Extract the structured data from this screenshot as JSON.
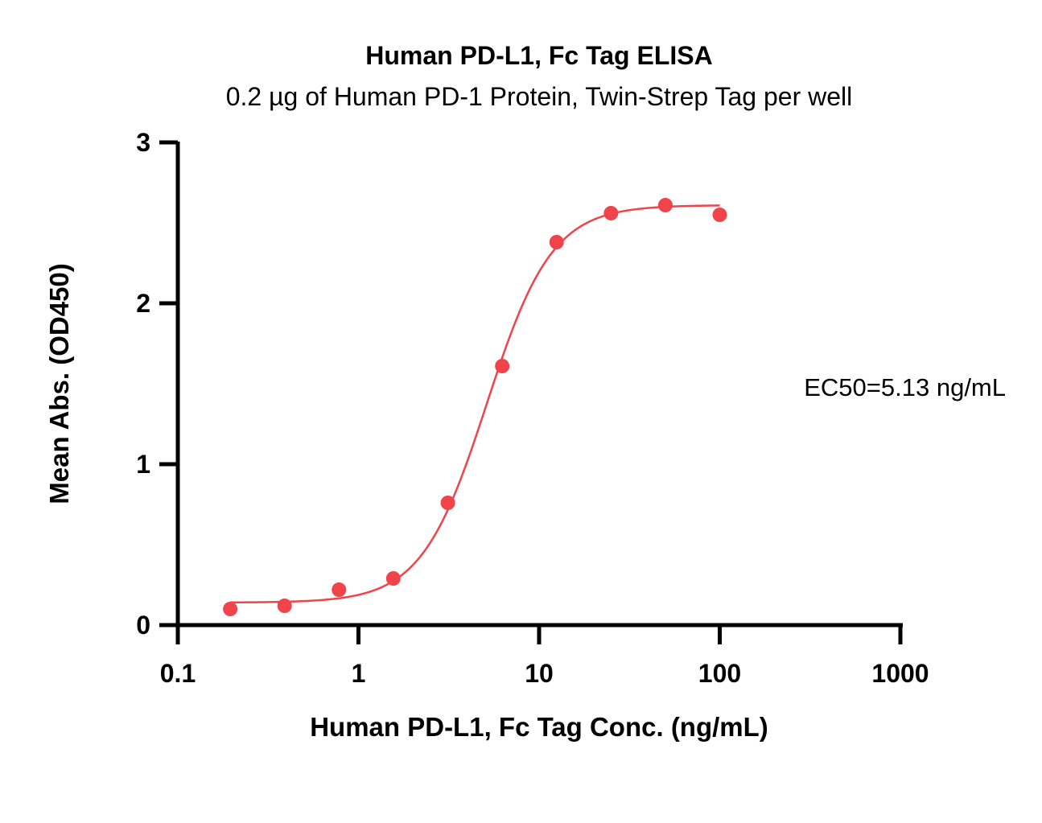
{
  "chart_data": {
    "type": "scatter",
    "title": "Human PD-L1, Fc Tag ELISA",
    "subtitle": "0.2 µg of Human PD-1 Protein, Twin-Strep Tag per well",
    "xlabel": "Human PD-L1, Fc Tag Conc. (ng/mL)",
    "ylabel": "Mean Abs. (OD450)",
    "x_scale": "log",
    "xlim": [
      0.1,
      1000
    ],
    "ylim": [
      0,
      3
    ],
    "x_ticks": [
      0.1,
      1,
      10,
      100,
      1000
    ],
    "x_tick_labels": [
      "0.1",
      "1",
      "10",
      "100",
      "1000"
    ],
    "y_ticks": [
      0,
      1,
      2,
      3
    ],
    "y_tick_labels": [
      "0",
      "1",
      "2",
      "3"
    ],
    "grid": false,
    "series": [
      {
        "points": [
          {
            "x": 0.195,
            "y": 0.1
          },
          {
            "x": 0.39,
            "y": 0.12
          },
          {
            "x": 0.78,
            "y": 0.22
          },
          {
            "x": 1.56,
            "y": 0.29
          },
          {
            "x": 3.125,
            "y": 0.76
          },
          {
            "x": 6.25,
            "y": 1.61
          },
          {
            "x": 12.5,
            "y": 2.38
          },
          {
            "x": 25,
            "y": 2.56
          },
          {
            "x": 50,
            "y": 2.61
          },
          {
            "x": 100,
            "y": 2.55
          }
        ],
        "fit": {
          "model": "4PL",
          "bottom": 0.14,
          "top": 2.61,
          "ec50": 5.13,
          "hill": 2.4,
          "x_range": [
            0.195,
            100
          ]
        },
        "color": "#f0444a"
      }
    ],
    "annotation": "EC50=5.13 ng/mL"
  }
}
